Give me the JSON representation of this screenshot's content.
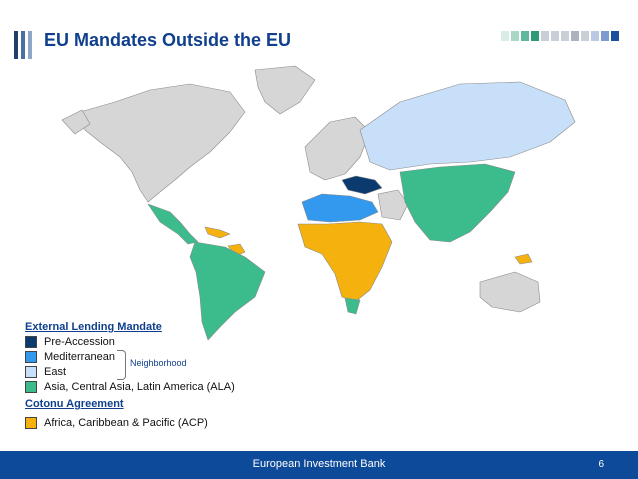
{
  "header": {
    "title": "EU Mandates Outside the EU",
    "bar_colors": [
      "#1f3f6e",
      "#4a6fa5",
      "#8ea6c8"
    ],
    "square_colors": [
      "#d9ece6",
      "#a9d7c6",
      "#5fb89b",
      "#2e9a77",
      "#c9cfd6",
      "#c9cfd6",
      "#c9cfd6",
      "#aab3be",
      "#c9cfd6",
      "#b9c8e4",
      "#7e9bd1",
      "#1d4f9c"
    ]
  },
  "legend": {
    "external_heading": "External Lending Mandate",
    "items_external": [
      {
        "label": "Pre-Accession",
        "color": "#0b3b6e"
      },
      {
        "label": "Mediterranean",
        "color": "#3399ee"
      },
      {
        "label": "East",
        "color": "#c8dffa"
      },
      {
        "label": "Asia, Central Asia, Latin America (ALA)",
        "color": "#3cbc8d"
      }
    ],
    "neighborhood_label": "Neighborhood",
    "cotonu_heading": "Cotonu Agreement",
    "items_cotonu": [
      {
        "label": "Africa, Caribbean & Pacific (ACP)",
        "color": "#f5b20f"
      }
    ]
  },
  "map_colors": {
    "other": "#d6d6d6",
    "border": "#8a8a8a"
  },
  "footer": {
    "text": "European Investment Bank",
    "page": "6"
  }
}
